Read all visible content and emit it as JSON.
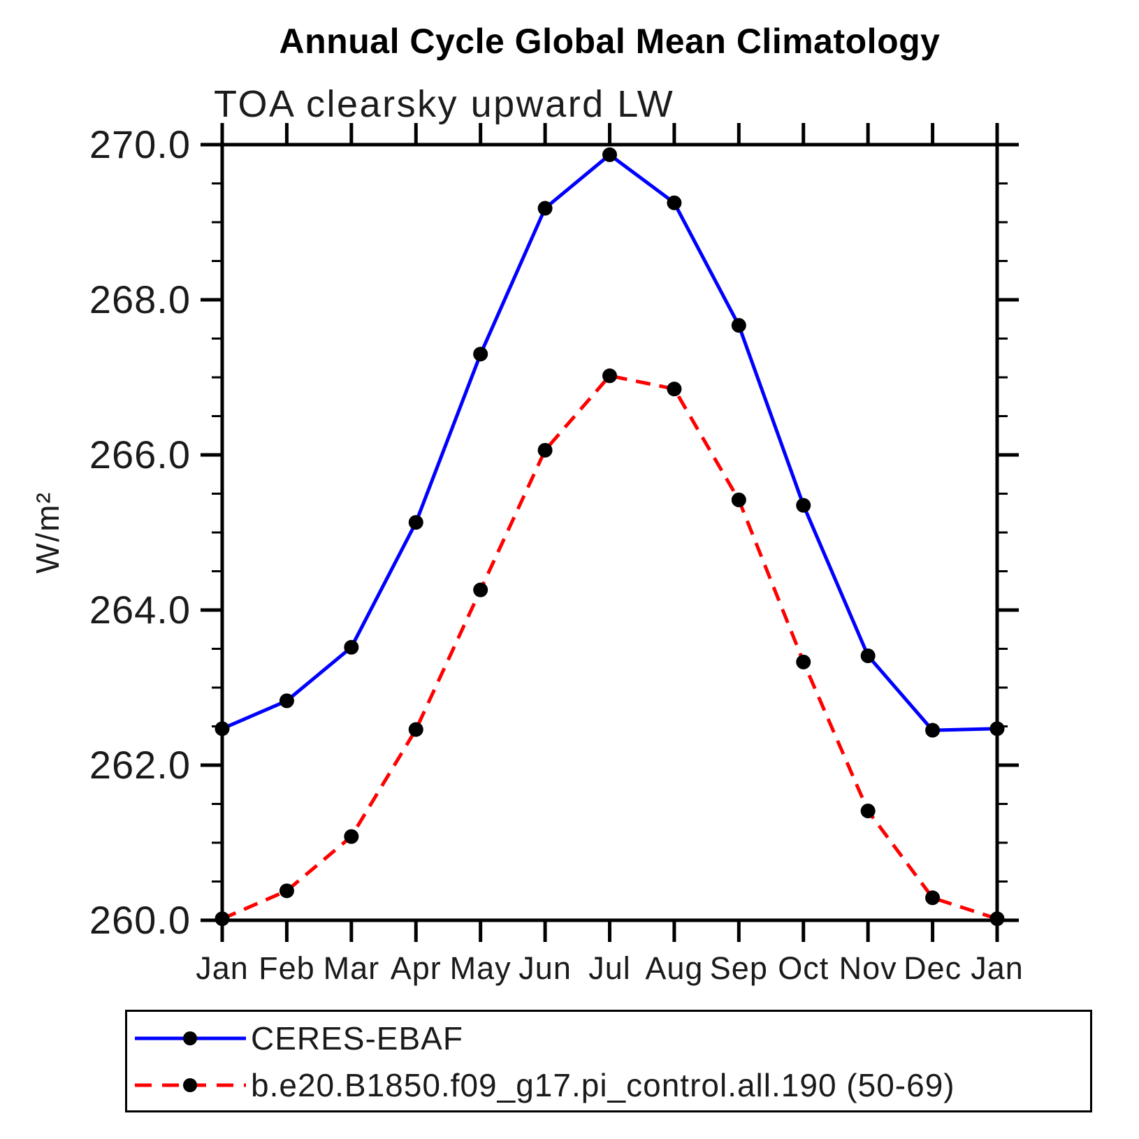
{
  "header": {
    "title": "Annual Cycle Global Mean Climatology",
    "subtitle": "TOA clearsky upward LW"
  },
  "chart_data": {
    "type": "line",
    "title": "Annual Cycle Global Mean Climatology",
    "subtitle": "TOA clearsky upward LW",
    "xlabel": "",
    "ylabel": "W/m²",
    "categories": [
      "Jan",
      "Feb",
      "Mar",
      "Apr",
      "May",
      "Jun",
      "Jul",
      "Aug",
      "Sep",
      "Oct",
      "Nov",
      "Dec",
      "Jan"
    ],
    "ylim": [
      260.0,
      270.0
    ],
    "y_major_step": 2.0,
    "y_minor_step": 0.5,
    "y_tick_labels": [
      "260.0",
      "262.0",
      "264.0",
      "266.0",
      "268.0",
      "270.0"
    ],
    "grid": false,
    "legend_position": "bottom-left-box",
    "axis_color": "#000000",
    "marker_color": "#000000",
    "series": [
      {
        "name": "CERES-EBAF",
        "color": "#0000ff",
        "line_style": "solid",
        "marker": "circle",
        "values": [
          262.47,
          262.83,
          263.52,
          265.13,
          267.3,
          269.18,
          269.87,
          269.25,
          267.67,
          265.35,
          263.41,
          262.45,
          262.47
        ]
      },
      {
        "name": "b.e20.B1850.f09_g17.pi_control.all.190 (50-69)",
        "color": "#ff0000",
        "line_style": "dashed",
        "marker": "circle",
        "values": [
          260.02,
          260.38,
          261.08,
          262.46,
          264.26,
          266.06,
          267.02,
          266.85,
          265.42,
          263.33,
          261.41,
          260.29,
          260.02
        ]
      }
    ]
  }
}
